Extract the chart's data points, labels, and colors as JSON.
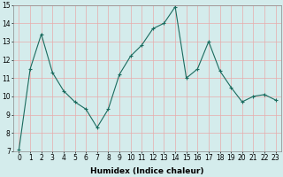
{
  "x": [
    0,
    1,
    2,
    3,
    4,
    5,
    6,
    7,
    8,
    9,
    10,
    11,
    12,
    13,
    14,
    15,
    16,
    17,
    18,
    19,
    20,
    21,
    22,
    23
  ],
  "y": [
    7.1,
    11.5,
    13.4,
    11.3,
    10.3,
    9.7,
    9.3,
    8.3,
    9.3,
    11.2,
    12.2,
    12.8,
    13.7,
    14.0,
    14.9,
    11.0,
    11.5,
    13.0,
    11.4,
    10.5,
    9.7,
    10.0,
    10.1,
    9.8
  ],
  "xlabel": "Humidex (Indice chaleur)",
  "ylim": [
    7,
    15
  ],
  "xlim_min": -0.5,
  "xlim_max": 23.5,
  "yticks": [
    7,
    8,
    9,
    10,
    11,
    12,
    13,
    14,
    15
  ],
  "xticks": [
    0,
    1,
    2,
    3,
    4,
    5,
    6,
    7,
    8,
    9,
    10,
    11,
    12,
    13,
    14,
    15,
    16,
    17,
    18,
    19,
    20,
    21,
    22,
    23
  ],
  "line_color": "#1a6b5e",
  "marker_color": "#1a6b5e",
  "bg_color": "#d4ecec",
  "grid_color": "#e8aaaa",
  "fig_bg": "#d4ecec",
  "tick_fontsize": 5.5,
  "xlabel_fontsize": 6.5,
  "marker_size": 3.0,
  "line_width": 0.8
}
